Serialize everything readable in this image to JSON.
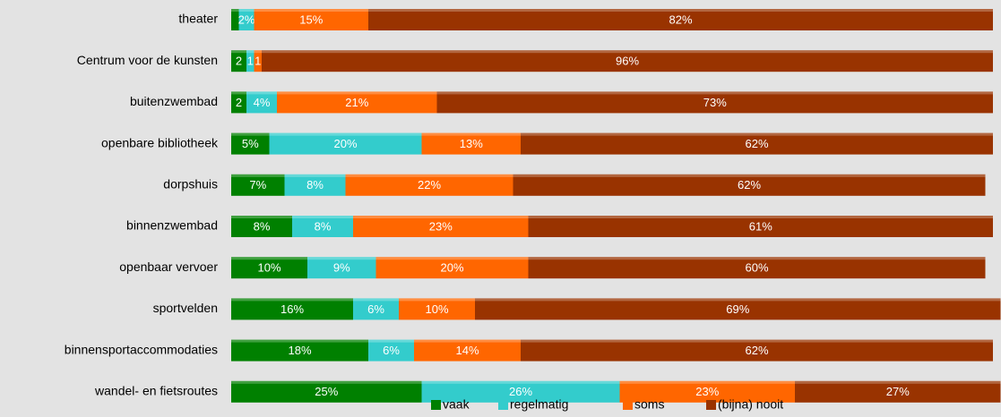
{
  "chart_data": {
    "type": "stacked-barh",
    "categories": [
      "theater",
      "Centrum voor de kunsten",
      "buitenzwembad",
      "openbare bibliotheek",
      "dorpshuis",
      "binnenzwembad",
      "openbaar vervoer",
      "sportvelden",
      "binnensportaccommodaties",
      "wandel- en fietsroutes"
    ],
    "xlim": [
      0,
      100
    ],
    "legend": "bottom",
    "series": [
      {
        "name": "vaak",
        "color": "#008000",
        "values": [
          1,
          2,
          2,
          5,
          7,
          8,
          10,
          16,
          18,
          25
        ],
        "value_labels": [
          null,
          "2",
          "2",
          "5%",
          "7%",
          "8%",
          "10%",
          "16%",
          "18%",
          "25%"
        ]
      },
      {
        "name": "regelmatig",
        "color": "#33cccc",
        "values": [
          2,
          1,
          4,
          20,
          8,
          8,
          9,
          6,
          6,
          26
        ],
        "value_labels": [
          "2%",
          "1",
          "4%",
          "20%",
          "8%",
          "8%",
          "9%",
          "6%",
          "6%",
          "26%"
        ]
      },
      {
        "name": "soms",
        "color": "#ff6600",
        "values": [
          15,
          1,
          21,
          13,
          22,
          23,
          20,
          10,
          14,
          23
        ],
        "value_labels": [
          "15%",
          "1",
          "21%",
          "13%",
          "22%",
          "23%",
          "20%",
          "10%",
          "14%",
          "23%"
        ]
      },
      {
        "name": "(bijna) nooit",
        "color": "#993300",
        "values": [
          82,
          96,
          73,
          62,
          62,
          61,
          60,
          69,
          62,
          27
        ],
        "value_labels": [
          "82%",
          "96%",
          "73%",
          "62%",
          "62%",
          "61%",
          "60%",
          "69%",
          "62%",
          "27%"
        ]
      }
    ]
  }
}
